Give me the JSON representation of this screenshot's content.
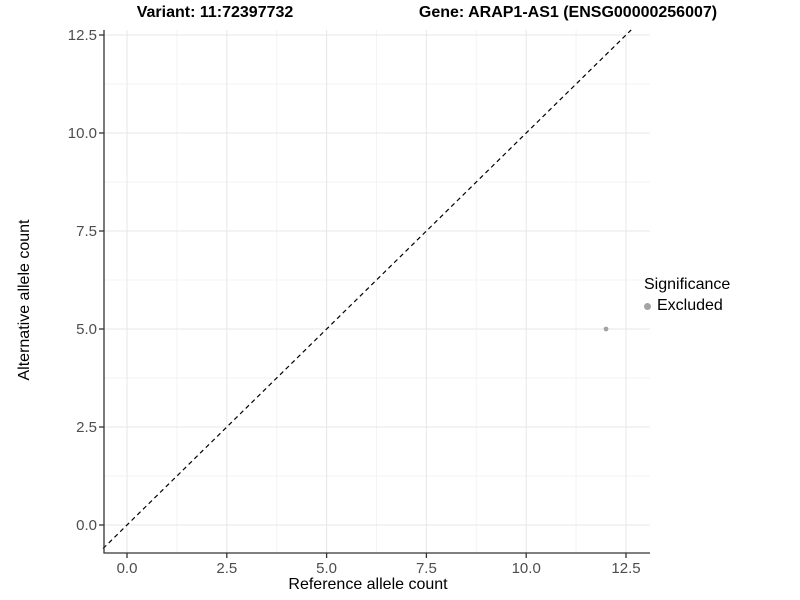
{
  "figure": {
    "title_left": "Variant: 11:72397732",
    "title_right": "Gene: ARAP1-AS1 (ENSG00000256007)"
  },
  "chart_data": {
    "type": "scatter",
    "title": "Variant: 11:72397732   Gene: ARAP1-AS1 (ENSG00000256007)",
    "xlabel": "Reference allele count",
    "ylabel": "Alternative allele count",
    "x_ticks": [
      {
        "value": 0.0,
        "label": "0.0"
      },
      {
        "value": 2.5,
        "label": "2.5"
      },
      {
        "value": 5.0,
        "label": "5.0"
      },
      {
        "value": 7.5,
        "label": "7.5"
      },
      {
        "value": 10.0,
        "label": "10.0"
      },
      {
        "value": 12.5,
        "label": "12.5"
      }
    ],
    "y_ticks": [
      {
        "value": 0.0,
        "label": "0.0"
      },
      {
        "value": 2.5,
        "label": "2.5"
      },
      {
        "value": 5.0,
        "label": "5.0"
      },
      {
        "value": 7.5,
        "label": "7.5"
      },
      {
        "value": 10.0,
        "label": "10.0"
      },
      {
        "value": 12.5,
        "label": "12.5"
      }
    ],
    "xlim": [
      -0.6,
      13.1
    ],
    "ylim": [
      -0.72,
      12.63
    ],
    "grid": true,
    "series": [
      {
        "name": "Excluded",
        "color": "#a4a4a4",
        "points": [
          {
            "x": 12,
            "y": 5
          }
        ]
      }
    ],
    "reference_line": {
      "type": "identity",
      "slope": 1,
      "intercept": 0,
      "style": "dashed",
      "color": "#000000"
    },
    "legend": {
      "title": "Significance",
      "position": "right",
      "entries": [
        {
          "label": "Excluded",
          "color": "#a4a4a4"
        }
      ]
    },
    "colors": {
      "grid_major": "#e7e7e7",
      "grid_minor": "#f3f3f3",
      "axis_line": "#333333",
      "tick_mark": "#333333",
      "tick_label": "#4d4d4d",
      "panel_background": "#ffffff"
    }
  }
}
